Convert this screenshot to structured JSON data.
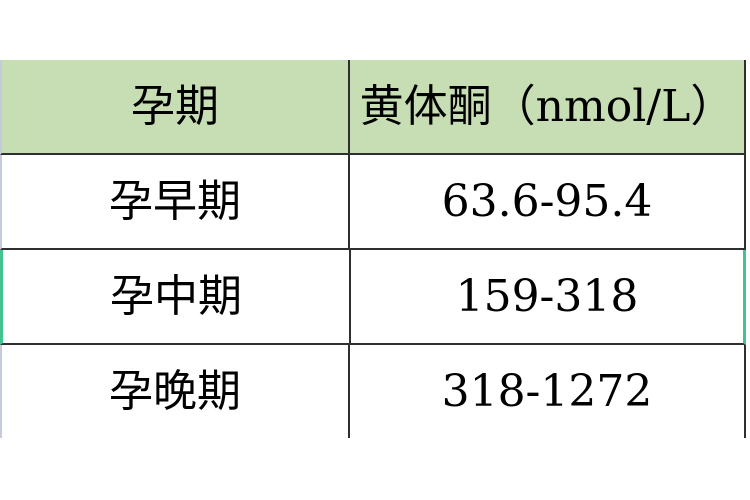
{
  "table": {
    "columns": [
      {
        "label": "孕期"
      },
      {
        "label": "黄体酮（nmol/L）"
      }
    ],
    "rows": [
      {
        "stage": "孕早期",
        "range": "63.6-95.4",
        "selected": false
      },
      {
        "stage": "孕中期",
        "range": "159-318",
        "selected": true
      },
      {
        "stage": "孕晚期",
        "range": "318-1272",
        "selected": false
      }
    ]
  },
  "colors": {
    "header_bg": "#c7deb4",
    "grid_border": "#2f2f2f",
    "left_edge": "#c5cade",
    "selection_accent": "#42c490",
    "text": "#000000",
    "page_bg": "#ffffff"
  },
  "chart_data": {
    "type": "table",
    "title": "",
    "columns": [
      "孕期",
      "黄体酮（nmol/L）"
    ],
    "rows": [
      [
        "孕早期",
        "63.6-95.4"
      ],
      [
        "孕中期",
        "159-318"
      ],
      [
        "孕晚期",
        "318-1272"
      ]
    ],
    "notes": "Progesterone reference ranges (nmol/L) by pregnancy trimester; header row shaded light green; middle row marked with green selection edges"
  }
}
